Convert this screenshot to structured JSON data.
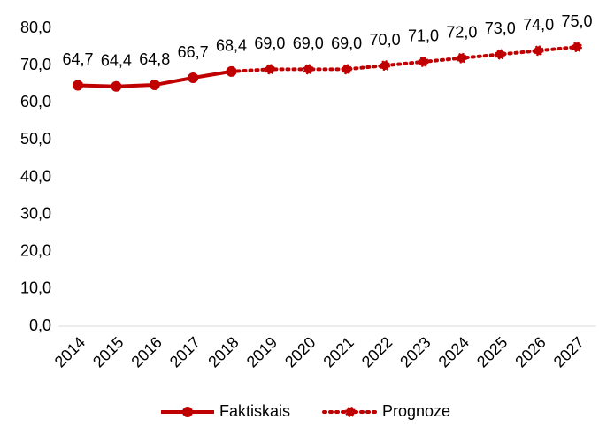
{
  "chart_data": {
    "type": "line",
    "categories": [
      "2014",
      "2015",
      "2016",
      "2017",
      "2018",
      "2019",
      "2020",
      "2021",
      "2022",
      "2023",
      "2024",
      "2025",
      "2026",
      "2027"
    ],
    "series": [
      {
        "name": "Faktiskais",
        "color": "#c00000",
        "style": "solid",
        "values": [
          64.7,
          64.4,
          64.8,
          66.7,
          68.4,
          null,
          null,
          null,
          null,
          null,
          null,
          null,
          null,
          null
        ],
        "value_labels": [
          "64,7",
          "64,4",
          "64,8",
          "66,7",
          "68,4",
          null,
          null,
          null,
          null,
          null,
          null,
          null,
          null,
          null
        ]
      },
      {
        "name": "Prognoze",
        "color": "#c00000",
        "style": "dotted",
        "values": [
          null,
          null,
          null,
          null,
          68.4,
          69.0,
          69.0,
          69.0,
          70.0,
          71.0,
          72.0,
          73.0,
          74.0,
          75.0
        ],
        "value_labels": [
          null,
          null,
          null,
          null,
          null,
          "69,0",
          "69,0",
          "69,0",
          "70,0",
          "71,0",
          "72,0",
          "73,0",
          "74,0",
          "75,0"
        ]
      }
    ],
    "ylim": [
      0,
      80
    ],
    "yticks": [
      {
        "value": 0,
        "label": "0,0"
      },
      {
        "value": 10,
        "label": "10,0"
      },
      {
        "value": 20,
        "label": "20,0"
      },
      {
        "value": 30,
        "label": "30,0"
      },
      {
        "value": 40,
        "label": "40,0"
      },
      {
        "value": 50,
        "label": "50,0"
      },
      {
        "value": 60,
        "label": "60,0"
      },
      {
        "value": 70,
        "label": "70,0"
      },
      {
        "value": 80,
        "label": "80,0"
      }
    ],
    "grid": false,
    "legend": "bottom"
  }
}
